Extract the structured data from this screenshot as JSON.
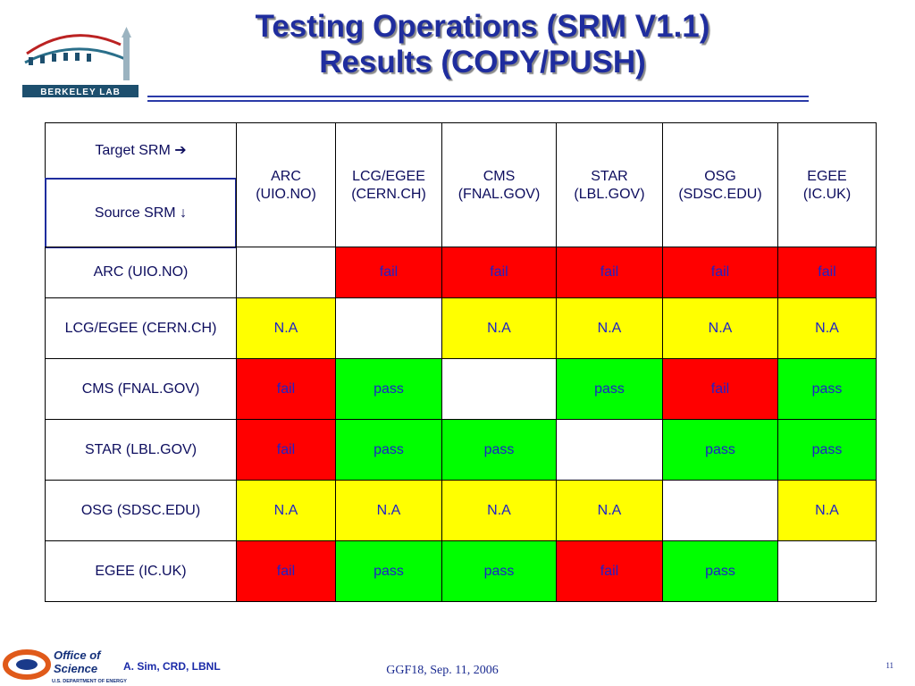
{
  "header": {
    "title_lines": [
      "Testing Operations (SRM V1.1)",
      "Results (COPY/PUSH)"
    ],
    "logo_text": "BERKELEY LAB"
  },
  "table": {
    "target_label": "Target SRM ➔",
    "source_label": "Source SRM ↓",
    "columns": [
      {
        "name": "ARC",
        "site": "(UIO.NO)"
      },
      {
        "name": "LCG/EGEE",
        "site": "(CERN.CH)"
      },
      {
        "name": "CMS",
        "site": "(FNAL.GOV)"
      },
      {
        "name": "STAR",
        "site": "(LBL.GOV)"
      },
      {
        "name": "OSG",
        "site": "(SDSC.EDU)"
      },
      {
        "name": "EGEE",
        "site": "(IC.UK)"
      }
    ],
    "rows": [
      {
        "source": "ARC (UIO.NO)",
        "cells": [
          null,
          "fail",
          "fail",
          "fail",
          "fail",
          "fail"
        ]
      },
      {
        "source": "LCG/EGEE (CERN.CH)",
        "cells": [
          "N.A",
          null,
          "N.A",
          "N.A",
          "N.A",
          "N.A"
        ]
      },
      {
        "source": "CMS (FNAL.GOV)",
        "cells": [
          "fail",
          "pass",
          null,
          "pass",
          "fail",
          "pass"
        ]
      },
      {
        "source": "STAR (LBL.GOV)",
        "cells": [
          "fail",
          "pass",
          "pass",
          null,
          "pass",
          "pass"
        ]
      },
      {
        "source": "OSG (SDSC.EDU)",
        "cells": [
          "N.A",
          "N.A",
          "N.A",
          "N.A",
          null,
          "N.A"
        ]
      },
      {
        "source": "EGEE (IC.UK)",
        "cells": [
          "fail",
          "pass",
          "pass",
          "fail",
          "pass",
          null
        ]
      }
    ],
    "status_colors": {
      "fail": "#ff0000",
      "pass": "#00ff00",
      "N.A": "#ffff00"
    }
  },
  "footer": {
    "office_lines": [
      "Office of",
      "Science"
    ],
    "department": "U.S. DEPARTMENT OF ENERGY",
    "author": "A. Sim, CRD, LBNL",
    "event": "GGF18,  Sep. 11, 2006",
    "page": "11"
  }
}
